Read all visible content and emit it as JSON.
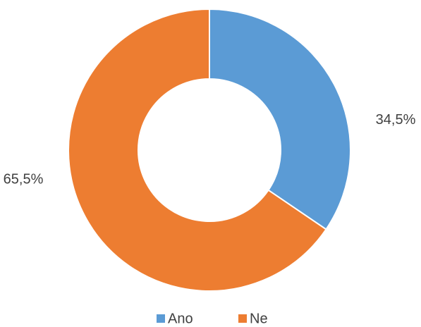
{
  "chart_data": {
    "type": "donut",
    "categories": [
      "Ano",
      "Ne"
    ],
    "values": [
      34.5,
      65.5
    ],
    "value_labels": [
      "34,5%",
      "65,5%"
    ],
    "colors": [
      "#5b9bd5",
      "#ed7d31"
    ],
    "legend": "bottom"
  }
}
